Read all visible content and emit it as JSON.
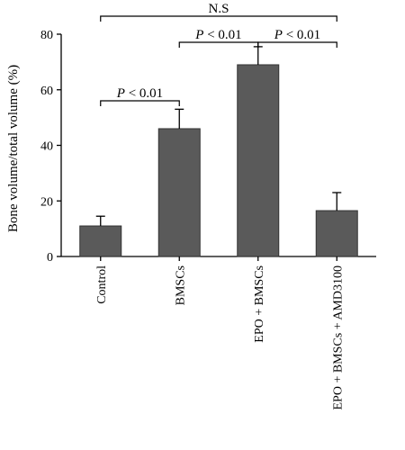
{
  "chart_data": {
    "type": "bar",
    "categories": [
      "Control",
      "BMSCs",
      "EPO + BMSCs",
      "EPO + BMSCs + AMD3100"
    ],
    "values": [
      11,
      46,
      69,
      16.5
    ],
    "errors": [
      3.5,
      7,
      6.5,
      6.5
    ],
    "ylabel": "Bone volume/total volume (%)",
    "xlabel": "",
    "ylim": [
      0,
      80
    ],
    "yticks": [
      0,
      20,
      40,
      60,
      80
    ],
    "colors": {
      "bar": "#5a5a5a"
    },
    "grid": false,
    "significance": [
      {
        "from": 0,
        "to": 1,
        "label_parts": [
          "P",
          " < 0.01"
        ]
      },
      {
        "from": 1,
        "to": 2,
        "label_parts": [
          "P",
          " < 0.01"
        ]
      },
      {
        "from": 2,
        "to": 3,
        "label_parts": [
          "P",
          " < 0.01"
        ]
      },
      {
        "from": 0,
        "to": 3,
        "label_parts": [
          "N.S",
          ""
        ]
      }
    ]
  }
}
